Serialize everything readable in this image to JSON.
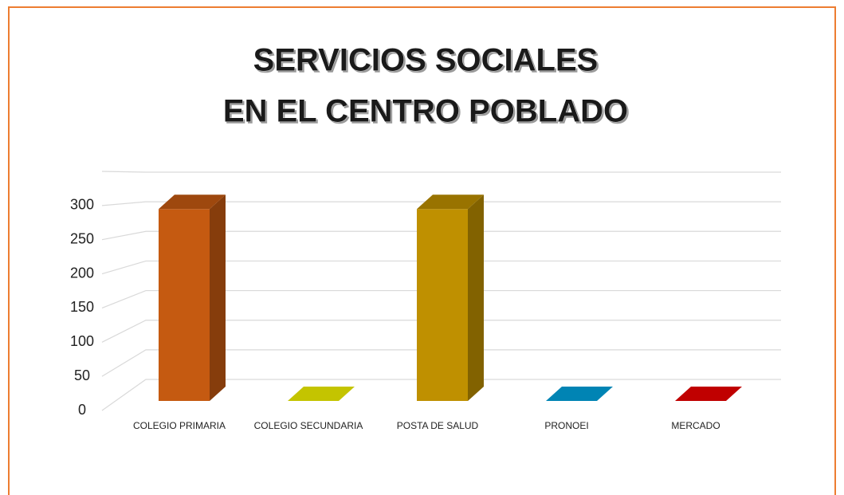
{
  "chart_data": {
    "type": "bar3d",
    "title": [
      "SERVICIOS SOCIALES",
      "EN EL CENTRO POBLADO"
    ],
    "categories": [
      "COLEGIO PRIMARIA",
      "COLEGIO SECUNDARIA",
      "POSTA DE SALUD",
      "PRONOEI",
      "MERCADO"
    ],
    "values": [
      280,
      0,
      280,
      0,
      0
    ],
    "colors": [
      "#c55a11",
      "#c4c400",
      "#bf9000",
      "#0084b4",
      "#c00000"
    ],
    "ylim": [
      0,
      350
    ],
    "yticks": [
      0,
      50,
      100,
      150,
      200,
      250,
      300
    ],
    "grid": true
  }
}
